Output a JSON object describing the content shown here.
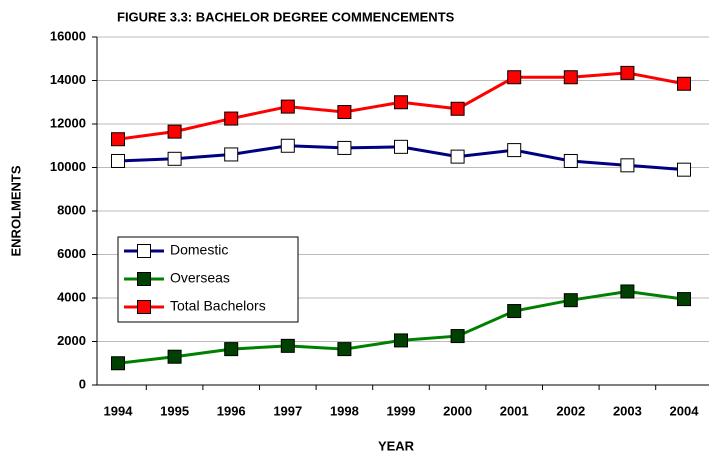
{
  "chart_data": {
    "type": "line",
    "title": "FIGURE 3.3:  BACHELOR DEGREE  COMMENCEMENTS",
    "x_label": "YEAR",
    "y_label": "ENROLMENTS",
    "categories": [
      "1994",
      "1995",
      "1996",
      "1997",
      "1998",
      "1999",
      "2000",
      "2001",
      "2002",
      "2003",
      "2004"
    ],
    "series": [
      {
        "name": "Domestic",
        "color": "#000080",
        "marker_color": "#ffffff",
        "values": [
          10300,
          10400,
          10600,
          11000,
          10900,
          10950,
          10500,
          10800,
          10300,
          10100,
          9900
        ]
      },
      {
        "name": "Overseas",
        "color": "#008000",
        "marker_color": "#004000",
        "values": [
          1000,
          1300,
          1650,
          1800,
          1650,
          2050,
          2250,
          3400,
          3900,
          4300,
          3950
        ]
      },
      {
        "name": "Total Bachelors",
        "color": "#ff0000",
        "marker_color": "#ff0000",
        "values": [
          11300,
          11650,
          12250,
          12800,
          12550,
          13000,
          12700,
          14150,
          14150,
          14350,
          13850
        ]
      }
    ],
    "ylim": [
      0,
      16000
    ],
    "yticks": [
      0,
      2000,
      4000,
      6000,
      8000,
      10000,
      12000,
      14000,
      16000
    ],
    "grid": true
  }
}
